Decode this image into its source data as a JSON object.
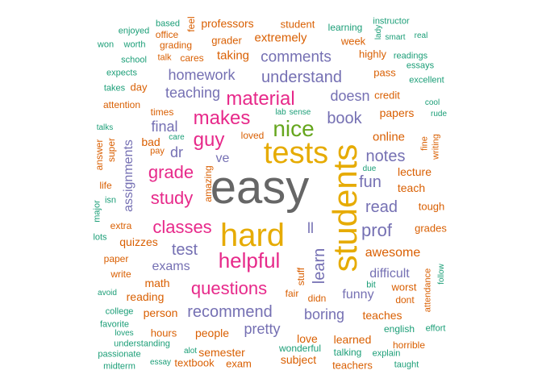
{
  "colors": {
    "green": "#1b9e77",
    "orange": "#d95f02",
    "purple": "#7570b3",
    "pink": "#e7298a",
    "lime": "#66a61e",
    "gold": "#e6ab02",
    "gray": "#666666"
  },
  "words": [
    {
      "text": "easy",
      "color": "gray"
    },
    {
      "text": "students",
      "color": "gold"
    },
    {
      "text": "tests",
      "color": "gold"
    },
    {
      "text": "hard",
      "color": "gold"
    },
    {
      "text": "nice",
      "color": "lime"
    },
    {
      "text": "helpful",
      "color": "pink"
    },
    {
      "text": "makes",
      "color": "pink"
    },
    {
      "text": "material",
      "color": "pink"
    },
    {
      "text": "guy",
      "color": "pink"
    },
    {
      "text": "classes",
      "color": "pink"
    },
    {
      "text": "questions",
      "color": "pink"
    },
    {
      "text": "grade",
      "color": "pink"
    },
    {
      "text": "study",
      "color": "pink"
    },
    {
      "text": "learn",
      "color": "purple"
    },
    {
      "text": "prof",
      "color": "purple"
    },
    {
      "text": "test",
      "color": "purple"
    },
    {
      "text": "recommend",
      "color": "purple"
    },
    {
      "text": "understand",
      "color": "purple"
    },
    {
      "text": "comments",
      "color": "purple"
    },
    {
      "text": "homework",
      "color": "purple"
    },
    {
      "text": "teaching",
      "color": "purple"
    },
    {
      "text": "book",
      "color": "purple"
    },
    {
      "text": "notes",
      "color": "purple"
    },
    {
      "text": "read",
      "color": "purple"
    },
    {
      "text": "fun",
      "color": "purple"
    },
    {
      "text": "doesn",
      "color": "purple"
    },
    {
      "text": "final",
      "color": "purple"
    },
    {
      "text": "dr",
      "color": "purple"
    },
    {
      "text": "exams",
      "color": "purple"
    },
    {
      "text": "boring",
      "color": "purple"
    },
    {
      "text": "funny",
      "color": "purple"
    },
    {
      "text": "difficult",
      "color": "purple"
    },
    {
      "text": "pretty",
      "color": "purple"
    },
    {
      "text": "assignments",
      "color": "purple"
    },
    {
      "text": "ll",
      "color": "purple"
    },
    {
      "text": "ve",
      "color": "purple"
    },
    {
      "text": "awesome",
      "color": "orange"
    },
    {
      "text": "extremely",
      "color": "orange"
    },
    {
      "text": "taking",
      "color": "orange"
    },
    {
      "text": "online",
      "color": "orange"
    },
    {
      "text": "lecture",
      "color": "orange"
    },
    {
      "text": "teach",
      "color": "orange"
    },
    {
      "text": "papers",
      "color": "orange"
    },
    {
      "text": "grades",
      "color": "orange"
    },
    {
      "text": "tough",
      "color": "orange"
    },
    {
      "text": "quizzes",
      "color": "orange"
    },
    {
      "text": "math",
      "color": "orange"
    },
    {
      "text": "reading",
      "color": "orange"
    },
    {
      "text": "person",
      "color": "orange"
    },
    {
      "text": "people",
      "color": "orange"
    },
    {
      "text": "semester",
      "color": "orange"
    },
    {
      "text": "subject",
      "color": "orange"
    },
    {
      "text": "love",
      "color": "orange"
    },
    {
      "text": "learned",
      "color": "orange"
    },
    {
      "text": "teaches",
      "color": "orange"
    },
    {
      "text": "teachers",
      "color": "orange"
    },
    {
      "text": "worst",
      "color": "orange"
    },
    {
      "text": "extra",
      "color": "orange"
    },
    {
      "text": "pass",
      "color": "orange"
    },
    {
      "text": "credit",
      "color": "orange"
    },
    {
      "text": "bad",
      "color": "orange"
    },
    {
      "text": "amazing",
      "color": "orange"
    },
    {
      "text": "fair",
      "color": "orange"
    },
    {
      "text": "stuff",
      "color": "orange"
    },
    {
      "text": "professors",
      "color": "orange"
    },
    {
      "text": "student",
      "color": "orange"
    },
    {
      "text": "grader",
      "color": "orange"
    },
    {
      "text": "week",
      "color": "orange"
    },
    {
      "text": "highly",
      "color": "orange"
    },
    {
      "text": "learning",
      "color": "green"
    },
    {
      "text": "grading",
      "color": "orange"
    },
    {
      "text": "cares",
      "color": "orange"
    },
    {
      "text": "talk",
      "color": "orange"
    },
    {
      "text": "office",
      "color": "orange"
    },
    {
      "text": "feel",
      "color": "orange"
    },
    {
      "text": "day",
      "color": "orange"
    },
    {
      "text": "attention",
      "color": "orange"
    },
    {
      "text": "times",
      "color": "orange"
    },
    {
      "text": "pay",
      "color": "orange"
    },
    {
      "text": "super",
      "color": "orange"
    },
    {
      "text": "answer",
      "color": "orange"
    },
    {
      "text": "life",
      "color": "orange"
    },
    {
      "text": "paper",
      "color": "orange"
    },
    {
      "text": "write",
      "color": "orange"
    },
    {
      "text": "hours",
      "color": "orange"
    },
    {
      "text": "textbook",
      "color": "orange"
    },
    {
      "text": "exam",
      "color": "orange"
    },
    {
      "text": "loved",
      "color": "orange"
    },
    {
      "text": "didn",
      "color": "orange"
    },
    {
      "text": "dont",
      "color": "orange"
    },
    {
      "text": "fine",
      "color": "orange"
    },
    {
      "text": "writing",
      "color": "orange"
    },
    {
      "text": "attendance",
      "color": "orange"
    },
    {
      "text": "horrible",
      "color": "orange"
    },
    {
      "text": "instructor",
      "color": "green"
    },
    {
      "text": "lady",
      "color": "green"
    },
    {
      "text": "smart",
      "color": "green"
    },
    {
      "text": "real",
      "color": "green"
    },
    {
      "text": "readings",
      "color": "green"
    },
    {
      "text": "essays",
      "color": "green"
    },
    {
      "text": "excellent",
      "color": "green"
    },
    {
      "text": "cool",
      "color": "green"
    },
    {
      "text": "rude",
      "color": "green"
    },
    {
      "text": "based",
      "color": "green"
    },
    {
      "text": "enjoyed",
      "color": "green"
    },
    {
      "text": "won",
      "color": "green"
    },
    {
      "text": "worth",
      "color": "green"
    },
    {
      "text": "school",
      "color": "green"
    },
    {
      "text": "expects",
      "color": "green"
    },
    {
      "text": "takes",
      "color": "green"
    },
    {
      "text": "talks",
      "color": "green"
    },
    {
      "text": "care",
      "color": "green"
    },
    {
      "text": "isn",
      "color": "green"
    },
    {
      "text": "major",
      "color": "green"
    },
    {
      "text": "lots",
      "color": "green"
    },
    {
      "text": "avoid",
      "color": "green"
    },
    {
      "text": "college",
      "color": "green"
    },
    {
      "text": "favorite",
      "color": "green"
    },
    {
      "text": "loves",
      "color": "green"
    },
    {
      "text": "understanding",
      "color": "green"
    },
    {
      "text": "passionate",
      "color": "green"
    },
    {
      "text": "midterm",
      "color": "green"
    },
    {
      "text": "essay",
      "color": "green"
    },
    {
      "text": "alot",
      "color": "green"
    },
    {
      "text": "wonderful",
      "color": "green"
    },
    {
      "text": "talking",
      "color": "green"
    },
    {
      "text": "explain",
      "color": "green"
    },
    {
      "text": "taught",
      "color": "green"
    },
    {
      "text": "english",
      "color": "green"
    },
    {
      "text": "effort",
      "color": "green"
    },
    {
      "text": "bit",
      "color": "green"
    },
    {
      "text": "follow",
      "color": "green"
    },
    {
      "text": "lab",
      "color": "green"
    },
    {
      "text": "sense",
      "color": "green"
    },
    {
      "text": "due",
      "color": "green"
    }
  ]
}
